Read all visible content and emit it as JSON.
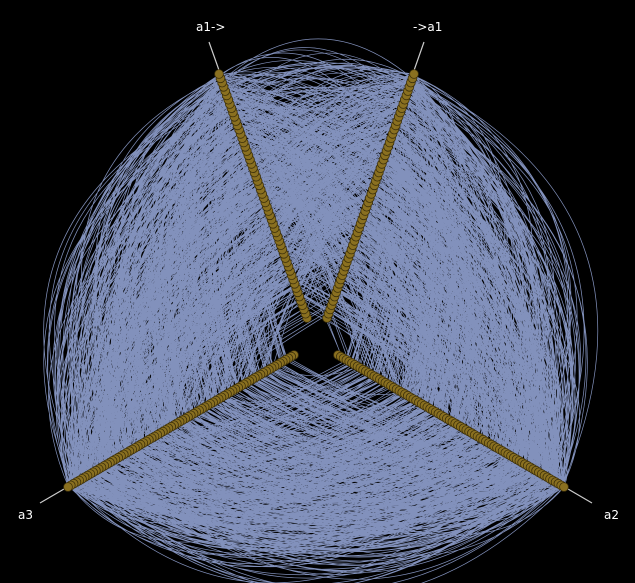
{
  "diagram": {
    "type": "hive-plot",
    "background": "#000000",
    "edge_color": "#99aadd",
    "node_fill": "#8a7020",
    "node_stroke": "#3d300a",
    "axis_color": "#cccccc",
    "label_color": "#ffffff"
  },
  "axes": [
    {
      "id": "a1_out",
      "label": "a1->"
    },
    {
      "id": "a1_in",
      "label": "->a1"
    },
    {
      "id": "a2",
      "label": "a2"
    },
    {
      "id": "a3",
      "label": "a3"
    }
  ]
}
